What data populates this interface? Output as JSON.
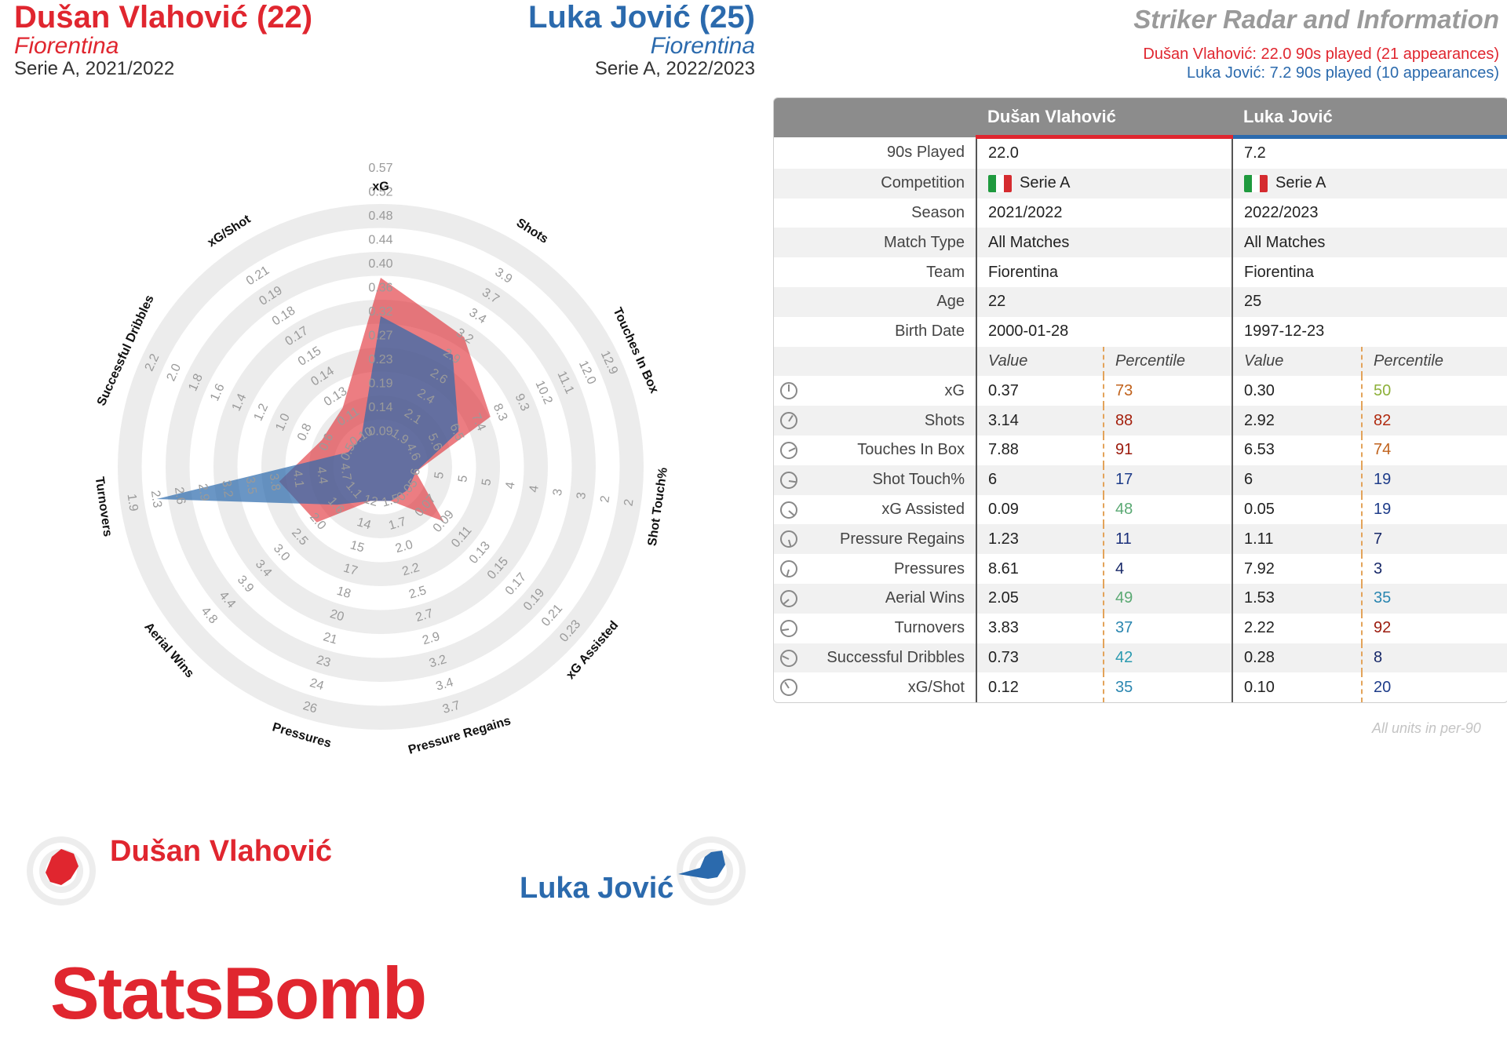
{
  "header": {
    "p1_name": "Dušan Vlahović (22)",
    "p1_team": "Fiorentina",
    "p1_season": "Serie A, 2021/2022",
    "p2_name": "Luka Jović (25)",
    "p2_team": "Fiorentina",
    "p2_season": "Serie A, 2022/2023",
    "title": "Striker Radar and Information",
    "sub1": "Dušan Vlahović: 22.0 90s played (21 appearances)",
    "sub2": "Luka Jović: 7.2 90s played (10 appearances)"
  },
  "colors": {
    "p1": "#e0262f",
    "p2": "#2b6aad",
    "ring": "#ececec"
  },
  "chart_data": {
    "type": "radar",
    "axes": [
      {
        "label": "xG",
        "ticks": [
          "0.09",
          "0.14",
          "0.19",
          "0.23",
          "0.27",
          "0.32",
          "0.36",
          "0.40",
          "0.44",
          "0.48",
          "0.52",
          "0.57"
        ]
      },
      {
        "label": "Shots",
        "ticks": [
          "1.9",
          "2.1",
          "2.4",
          "2.6",
          "2.9",
          "3.2",
          "3.4",
          "3.7",
          "3.9"
        ]
      },
      {
        "label": "Touches In Box",
        "ticks": [
          "4.6",
          "5.6",
          "6.5",
          "7.4",
          "8.3",
          "9.3",
          "10.2",
          "11.1",
          "12.0",
          "12.9"
        ]
      },
      {
        "label": "Shot Touch%",
        "ticks": [
          "6",
          "5",
          "5",
          "5",
          "4",
          "4",
          "3",
          "3",
          "2",
          "2"
        ]
      },
      {
        "label": "xG Assisted",
        "ticks": [
          "0.05",
          "0.07",
          "0.09",
          "0.11",
          "0.13",
          "0.15",
          "0.17",
          "0.19",
          "0.21",
          "0.23"
        ]
      },
      {
        "label": "Pressure Regains",
        "ticks": [
          "1.5",
          "1.7",
          "2.0",
          "2.2",
          "2.5",
          "2.7",
          "2.9",
          "3.2",
          "3.4",
          "3.7"
        ]
      },
      {
        "label": "Pressures",
        "ticks": [
          "12",
          "14",
          "15",
          "17",
          "18",
          "20",
          "21",
          "23",
          "24",
          "26"
        ]
      },
      {
        "label": "Aerial Wins",
        "ticks": [
          "1.1",
          "1.6",
          "2.0",
          "2.5",
          "3.0",
          "3.4",
          "3.9",
          "4.4",
          "4.8"
        ]
      },
      {
        "label": "Turnovers",
        "ticks": [
          "4.7",
          "4.4",
          "4.1",
          "3.8",
          "3.5",
          "3.2",
          "2.9",
          "2.6",
          "2.3",
          "1.9"
        ]
      },
      {
        "label": "Successful Dribbles",
        "ticks": [
          "0.5",
          "0.6",
          "0.8",
          "1.0",
          "1.2",
          "1.4",
          "1.6",
          "1.8",
          "2.0",
          "2.2"
        ]
      },
      {
        "label": "xG/Shot",
        "ticks": [
          "0.10",
          "0.11",
          "0.13",
          "0.14",
          "0.15",
          "0.17",
          "0.18",
          "0.19",
          "0.21"
        ]
      }
    ],
    "series": [
      {
        "name": "Dušan Vlahović",
        "values": [
          0.37,
          3.14,
          7.88,
          6,
          0.09,
          1.23,
          8.61,
          2.05,
          3.83,
          0.73,
          0.12
        ]
      },
      {
        "name": "Luka Jović",
        "values": [
          0.3,
          2.92,
          6.53,
          6,
          0.05,
          1.11,
          7.92,
          1.53,
          2.22,
          0.28,
          0.1
        ]
      }
    ]
  },
  "table": {
    "p1_header": "Dušan Vlahović",
    "p2_header": "Luka Jović",
    "info_rows": [
      {
        "label": "90s Played",
        "v1": "22.0",
        "v2": "7.2"
      },
      {
        "label": "Competition",
        "v1": "Serie A",
        "v2": "Serie A",
        "flag": true
      },
      {
        "label": "Season",
        "v1": "2021/2022",
        "v2": "2022/2023"
      },
      {
        "label": "Match Type",
        "v1": "All Matches",
        "v2": "All Matches"
      },
      {
        "label": "Team",
        "v1": "Fiorentina",
        "v2": "Fiorentina"
      },
      {
        "label": "Age",
        "v1": "22",
        "v2": "25"
      },
      {
        "label": "Birth Date",
        "v1": "2000-01-28",
        "v2": "1997-12-23"
      }
    ],
    "col_value": "Value",
    "col_percentile": "Percentile",
    "metric_rows": [
      {
        "label": "xG",
        "v1": "0.37",
        "p1": "73",
        "c1": "#c0621c",
        "v2": "0.30",
        "p2": "50",
        "c2": "#8db03a"
      },
      {
        "label": "Shots",
        "v1": "3.14",
        "p1": "88",
        "c1": "#a4200d",
        "v2": "2.92",
        "p2": "82",
        "c2": "#b02b10"
      },
      {
        "label": "Touches In Box",
        "v1": "7.88",
        "p1": "91",
        "c1": "#9b1a0c",
        "v2": "6.53",
        "p2": "74",
        "c2": "#c0621c"
      },
      {
        "label": "Shot Touch%",
        "v1": "6",
        "p1": "17",
        "c1": "#1f3d8a",
        "v2": "6",
        "p2": "19",
        "c2": "#1f3d8a"
      },
      {
        "label": "xG Assisted",
        "v1": "0.09",
        "p1": "48",
        "c1": "#5aa973",
        "v2": "0.05",
        "p2": "19",
        "c2": "#1f3d8a"
      },
      {
        "label": "Pressure Regains",
        "v1": "1.23",
        "p1": "11",
        "c1": "#1a2f7a",
        "v2": "1.11",
        "p2": "7",
        "c2": "#172868"
      },
      {
        "label": "Pressures",
        "v1": "8.61",
        "p1": "4",
        "c1": "#172868",
        "v2": "7.92",
        "p2": "3",
        "c2": "#172868"
      },
      {
        "label": "Aerial Wins",
        "v1": "2.05",
        "p1": "49",
        "c1": "#5aa973",
        "v2": "1.53",
        "p2": "35",
        "c2": "#2a86b0"
      },
      {
        "label": "Turnovers",
        "v1": "3.83",
        "p1": "37",
        "c1": "#2a86b0",
        "v2": "2.22",
        "p2": "92",
        "c2": "#9b1a0c"
      },
      {
        "label": "Successful Dribbles",
        "v1": "0.73",
        "p1": "42",
        "c1": "#2a9ab0",
        "v2": "0.28",
        "p2": "8",
        "c2": "#172868"
      },
      {
        "label": "xG/Shot",
        "v1": "0.12",
        "p1": "35",
        "c1": "#2a86b0",
        "v2": "0.10",
        "p2": "20",
        "c2": "#1f3d8a"
      }
    ],
    "footnote": "All units in per-90"
  },
  "legend": {
    "p1": "Dušan Vlahović",
    "p2": "Luka Jović"
  },
  "logo": "StatsBomb"
}
